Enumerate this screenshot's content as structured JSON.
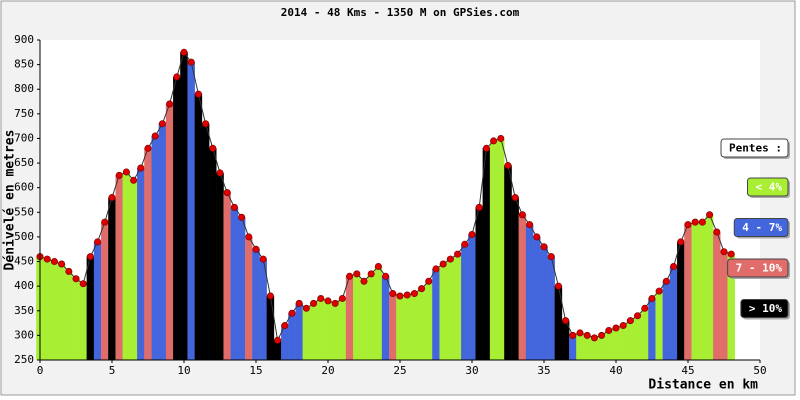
{
  "chart_data": {
    "type": "elevation",
    "title": "2014 - 48 Kms - 1350 M on GPSies.com",
    "x_label": "Distance en km",
    "y_label": "Dénivelé en metres",
    "x": [
      0,
      0.5,
      1,
      1.5,
      2,
      2.5,
      3,
      3.5,
      4,
      4.5,
      5,
      5.5,
      6,
      6.5,
      7,
      7.5,
      8,
      8.5,
      9,
      9.5,
      10,
      10.5,
      11,
      11.5,
      12,
      12.5,
      13,
      13.5,
      14,
      14.5,
      15,
      15.5,
      16,
      16.5,
      17,
      17.5,
      18,
      18.5,
      19,
      19.5,
      20,
      20.5,
      21,
      21.5,
      22,
      22.5,
      23,
      23.5,
      24,
      24.5,
      25,
      25.5,
      26,
      26.5,
      27,
      27.5,
      28,
      28.5,
      29,
      29.5,
      30,
      30.5,
      31,
      31.5,
      32,
      32.5,
      33,
      33.5,
      34,
      34.5,
      35,
      35.5,
      36,
      36.5,
      37,
      37.5,
      38,
      38.5,
      39,
      39.5,
      40,
      40.5,
      41,
      41.5,
      42,
      42.5,
      43,
      43.5,
      44,
      44.5,
      45,
      45.5,
      46,
      46.5,
      47,
      47.5,
      48
    ],
    "values": [
      460,
      455,
      450,
      445,
      430,
      415,
      405,
      460,
      490,
      530,
      580,
      625,
      632,
      615,
      640,
      680,
      705,
      730,
      770,
      825,
      875,
      855,
      790,
      730,
      680,
      630,
      590,
      560,
      540,
      500,
      475,
      455,
      380,
      290,
      320,
      345,
      365,
      355,
      365,
      375,
      370,
      365,
      375,
      420,
      425,
      410,
      425,
      440,
      420,
      385,
      380,
      382,
      385,
      395,
      410,
      435,
      445,
      455,
      465,
      485,
      505,
      560,
      680,
      695,
      700,
      645,
      580,
      545,
      525,
      500,
      480,
      460,
      400,
      330,
      300,
      305,
      300,
      295,
      300,
      310,
      315,
      320,
      330,
      340,
      355,
      375,
      390,
      410,
      440,
      490,
      525,
      530,
      530,
      545,
      510,
      470,
      465
    ],
    "bar_colors": [
      "#a8ee32",
      "#a8ee32",
      "#a8ee32",
      "#a8ee32",
      "#a8ee32",
      "#a8ee32",
      "#a8ee32",
      "#000000",
      "#4466dd",
      "#e06d6a",
      "#000000",
      "#e06d6a",
      "#a8ee32",
      "#a8ee32",
      "#4466dd",
      "#e06d6a",
      "#4466dd",
      "#4466dd",
      "#e06d6a",
      "#000000",
      "#000000",
      "#4466dd",
      "#000000",
      "#000000",
      "#000000",
      "#000000",
      "#e06d6a",
      "#4466dd",
      "#4466dd",
      "#e06d6a",
      "#4466dd",
      "#4466dd",
      "#000000",
      "#000000",
      "#4466dd",
      "#4466dd",
      "#4466dd",
      "#a8ee32",
      "#a8ee32",
      "#a8ee32",
      "#a8ee32",
      "#a8ee32",
      "#a8ee32",
      "#e06d6a",
      "#a8ee32",
      "#a8ee32",
      "#a8ee32",
      "#a8ee32",
      "#4466dd",
      "#e06d6a",
      "#a8ee32",
      "#a8ee32",
      "#a8ee32",
      "#a8ee32",
      "#a8ee32",
      "#4466dd",
      "#a8ee32",
      "#a8ee32",
      "#a8ee32",
      "#4466dd",
      "#4466dd",
      "#000000",
      "#000000",
      "#a8ee32",
      "#a8ee32",
      "#000000",
      "#000000",
      "#e06d6a",
      "#4466dd",
      "#4466dd",
      "#4466dd",
      "#4466dd",
      "#000000",
      "#000000",
      "#4466dd",
      "#a8ee32",
      "#a8ee32",
      "#a8ee32",
      "#a8ee32",
      "#a8ee32",
      "#a8ee32",
      "#a8ee32",
      "#a8ee32",
      "#a8ee32",
      "#a8ee32",
      "#4466dd",
      "#a8ee32",
      "#4466dd",
      "#4466dd",
      "#000000",
      "#e06d6a",
      "#a8ee32",
      "#a8ee32",
      "#a8ee32",
      "#e06d6a",
      "#e06d6a",
      "#a8ee32"
    ],
    "marker_color": "#e00000",
    "xlim": [
      0,
      50
    ],
    "xticks": [
      0,
      5,
      10,
      15,
      20,
      25,
      30,
      35,
      40,
      45,
      50
    ],
    "ylim": [
      250,
      900
    ],
    "yticks": [
      250,
      300,
      350,
      400,
      450,
      500,
      550,
      600,
      650,
      700,
      750,
      800,
      850,
      900
    ],
    "legend": {
      "title": "Pentes :",
      "items": [
        {
          "name": "< 4%",
          "color": "#a8ee32"
        },
        {
          "name": "4 - 7%",
          "color": "#4466dd"
        },
        {
          "name": "7 - 10%",
          "color": "#e06d6a"
        },
        {
          "name": "> 10%",
          "color": "#000000"
        }
      ]
    }
  }
}
